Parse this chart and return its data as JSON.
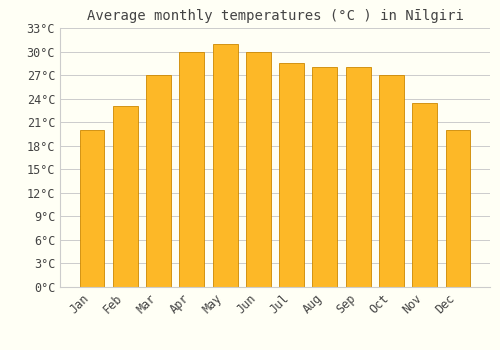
{
  "title": "Average monthly temperatures (°C ) in Nīlgiri",
  "months": [
    "Jan",
    "Feb",
    "Mar",
    "Apr",
    "May",
    "Jun",
    "Jul",
    "Aug",
    "Sep",
    "Oct",
    "Nov",
    "Dec"
  ],
  "values": [
    20.0,
    23.0,
    27.0,
    30.0,
    31.0,
    30.0,
    28.5,
    28.0,
    28.0,
    27.0,
    23.5,
    20.0
  ],
  "bar_color_top": "#FDB827",
  "bar_color_bottom": "#F5A623",
  "bar_edge_color": "#CC8800",
  "background_color": "#FFFFF5",
  "grid_color": "#CCCCCC",
  "text_color": "#444444",
  "ylim": [
    0,
    33
  ],
  "yticks": [
    0,
    3,
    6,
    9,
    12,
    15,
    18,
    21,
    24,
    27,
    30,
    33
  ],
  "title_fontsize": 10,
  "tick_fontsize": 8.5,
  "bar_width": 0.75
}
